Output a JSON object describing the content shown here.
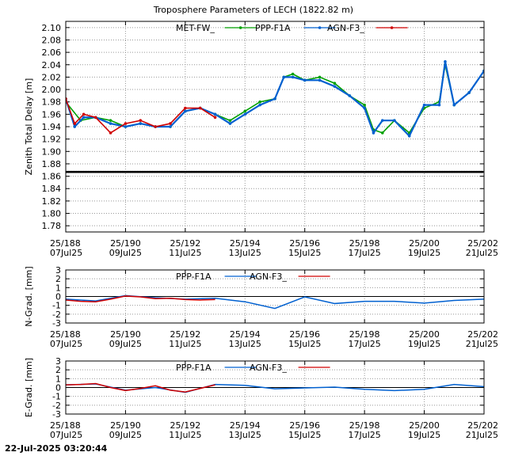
{
  "footer_timestamp": "22-Jul-2025 03:20:44",
  "chart_data": [
    {
      "type": "scatter",
      "title": "Troposphere Parameters of LECH (1822.82 m)",
      "ylabel": "Zenith Total Delay [m]",
      "xlim": [
        188,
        202
      ],
      "ylim": [
        1.77,
        2.11
      ],
      "yticks": [
        "2.10",
        "2.08",
        "2.06",
        "2.04",
        "2.02",
        "2.00",
        "1.98",
        "1.96",
        "1.94",
        "1.92",
        "1.90",
        "1.88",
        "1.86",
        "1.84",
        "1.82",
        "1.80",
        "1.78"
      ],
      "xticks": [
        {
          "doy": "25/188",
          "date": "07Jul25"
        },
        {
          "doy": "25/190",
          "date": "09Jul25"
        },
        {
          "doy": "25/192",
          "date": "11Jul25"
        },
        {
          "doy": "25/194",
          "date": "13Jul25"
        },
        {
          "doy": "25/196",
          "date": "15Jul25"
        },
        {
          "doy": "25/198",
          "date": "17Jul25"
        },
        {
          "doy": "25/200",
          "date": "19Jul25"
        },
        {
          "doy": "25/202",
          "date": "21Jul25"
        }
      ],
      "grid": true,
      "legend_position": "top",
      "series": [
        {
          "name": "MET-FW_",
          "color": "#00a000",
          "x": [
            188,
            188.5,
            189,
            189.5,
            190,
            190.5,
            191,
            191.5,
            192,
            192.5,
            193,
            193.5,
            194,
            194.5,
            195,
            195.3,
            195.6,
            196,
            196.5,
            197,
            197.5,
            198,
            198.3,
            198.6,
            199,
            199.5,
            200,
            200.5,
            200.7,
            201,
            201.5,
            202
          ],
          "y": [
            1.98,
            1.95,
            1.955,
            1.95,
            1.94,
            1.945,
            1.94,
            1.94,
            1.965,
            1.97,
            1.96,
            1.95,
            1.965,
            1.98,
            1.985,
            2.02,
            2.025,
            2.015,
            2.02,
            2.01,
            1.99,
            1.975,
            1.935,
            1.93,
            1.95,
            1.93,
            1.97,
            1.98,
            2.04,
            1.975,
            1.995,
            2.03
          ]
        },
        {
          "name": "PPP-F1A",
          "color": "#0060d0",
          "x": [
            188,
            188.3,
            188.6,
            189,
            189.5,
            190,
            190.5,
            191,
            191.5,
            192,
            192.5,
            193,
            193.5,
            194,
            194.5,
            195,
            195.3,
            195.6,
            196,
            196.5,
            197,
            197.5,
            198,
            198.3,
            198.6,
            199,
            199.5,
            200,
            200.5,
            200.7,
            201,
            201.5,
            202
          ],
          "y": [
            1.985,
            1.94,
            1.955,
            1.955,
            1.945,
            1.94,
            1.945,
            1.94,
            1.94,
            1.965,
            1.97,
            1.96,
            1.945,
            1.96,
            1.975,
            1.985,
            2.02,
            2.02,
            2.015,
            2.015,
            2.005,
            1.99,
            1.97,
            1.93,
            1.95,
            1.95,
            1.925,
            1.975,
            1.975,
            2.045,
            1.975,
            1.995,
            2.03
          ]
        },
        {
          "name": "AGN-F3_",
          "color": "#d00000",
          "x": [
            188,
            188.3,
            188.6,
            189,
            189.5,
            190,
            190.5,
            191,
            191.5,
            192,
            192.5,
            193
          ],
          "y": [
            1.985,
            1.945,
            1.96,
            1.955,
            1.93,
            1.945,
            1.95,
            1.94,
            1.945,
            1.97,
            1.97,
            1.955
          ]
        },
        {
          "name": "",
          "color": "#000000",
          "x": [
            188,
            202
          ],
          "y": [
            1.867,
            1.867
          ]
        }
      ]
    },
    {
      "type": "line",
      "ylabel": "N-Grad. [mm]",
      "xlim": [
        188,
        202
      ],
      "ylim": [
        -3,
        3
      ],
      "yticks": [
        "3",
        "2",
        "1",
        "0",
        "-1",
        "-2",
        "-3"
      ],
      "xticks": [
        {
          "doy": "25/188",
          "date": "07Jul25"
        },
        {
          "doy": "25/190",
          "date": "09Jul25"
        },
        {
          "doy": "25/192",
          "date": "11Jul25"
        },
        {
          "doy": "25/194",
          "date": "13Jul25"
        },
        {
          "doy": "25/196",
          "date": "15Jul25"
        },
        {
          "doy": "25/198",
          "date": "17Jul25"
        },
        {
          "doy": "25/200",
          "date": "19Jul25"
        },
        {
          "doy": "25/202",
          "date": "21Jul25"
        }
      ],
      "grid": true,
      "legend_position": "top",
      "series": [
        {
          "name": "PPP-F1A",
          "color": "#0060d0",
          "x": [
            188,
            189,
            190,
            191,
            192,
            193,
            194,
            195,
            196,
            197,
            198,
            199,
            200,
            201,
            202
          ],
          "y": [
            -0.3,
            -0.5,
            0.1,
            -0.15,
            -0.3,
            -0.2,
            -0.6,
            -1.35,
            -0.05,
            -0.8,
            -0.55,
            -0.55,
            -0.75,
            -0.45,
            -0.3
          ]
        },
        {
          "name": "AGN-F3_",
          "color": "#d00000",
          "x": [
            188,
            188.5,
            189,
            189.5,
            190,
            190.5,
            191,
            191.5,
            192,
            192.5,
            193
          ],
          "y": [
            -0.4,
            -0.55,
            -0.6,
            -0.3,
            0.05,
            -0.05,
            -0.25,
            -0.2,
            -0.35,
            -0.4,
            -0.35
          ]
        }
      ]
    },
    {
      "type": "line",
      "ylabel": "E-Grad. [mm]",
      "xlim": [
        188,
        202
      ],
      "ylim": [
        -3,
        3
      ],
      "yticks": [
        "3",
        "2",
        "1",
        "0",
        "-1",
        "-2",
        "-3"
      ],
      "xticks": [
        {
          "doy": "25/188",
          "date": "07Jul25"
        },
        {
          "doy": "25/190",
          "date": "09Jul25"
        },
        {
          "doy": "25/192",
          "date": "11Jul25"
        },
        {
          "doy": "25/194",
          "date": "13Jul25"
        },
        {
          "doy": "25/196",
          "date": "15Jul25"
        },
        {
          "doy": "25/198",
          "date": "17Jul25"
        },
        {
          "doy": "25/200",
          "date": "19Jul25"
        },
        {
          "doy": "25/202",
          "date": "21Jul25"
        }
      ],
      "grid": true,
      "legend_position": "top",
      "series": [
        {
          "name": "PPP-F1A",
          "color": "#0060d0",
          "x": [
            188,
            189,
            190,
            191,
            192,
            193,
            194,
            195,
            196,
            197,
            198,
            199,
            200,
            201,
            202
          ],
          "y": [
            0.3,
            0.4,
            -0.3,
            0.0,
            -0.55,
            0.35,
            0.25,
            -0.15,
            -0.05,
            0.05,
            -0.2,
            -0.35,
            -0.2,
            0.35,
            0.1
          ]
        },
        {
          "name": "AGN-F3_",
          "color": "#d00000",
          "x": [
            188,
            188.5,
            189,
            189.5,
            190,
            190.5,
            191,
            191.5,
            192,
            192.5,
            193
          ],
          "y": [
            0.3,
            0.35,
            0.45,
            0.0,
            -0.35,
            -0.1,
            0.2,
            -0.3,
            -0.5,
            -0.1,
            0.3
          ]
        }
      ]
    }
  ]
}
